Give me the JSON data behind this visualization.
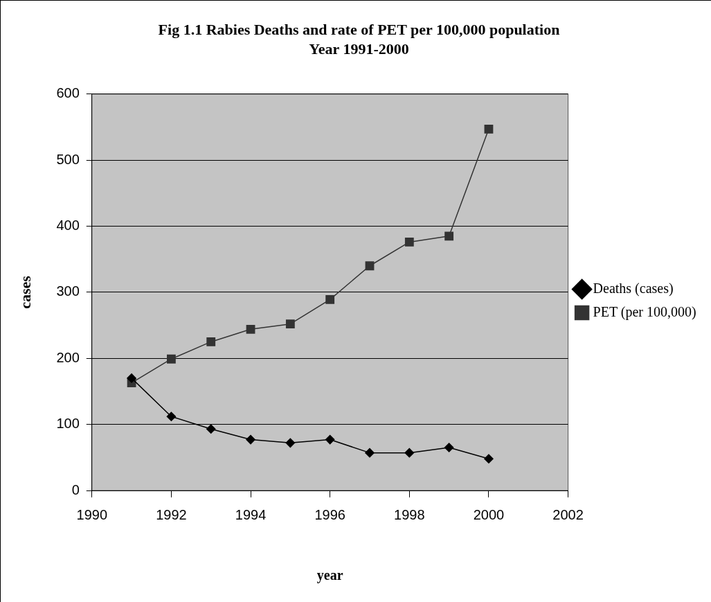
{
  "chart_data": {
    "type": "line",
    "title": "Fig 1.1 Rabies Deaths and rate of PET per 100,000 population",
    "subtitle": "Year 1991-2000",
    "xlabel": "year",
    "ylabel": "cases",
    "x": [
      1991,
      1992,
      1993,
      1994,
      1995,
      1996,
      1997,
      1998,
      1999,
      2000
    ],
    "series": [
      {
        "name": "Deaths (cases)",
        "color": "#000000",
        "marker": "diamond",
        "values": [
          170,
          112,
          93,
          77,
          72,
          77,
          57,
          57,
          65,
          48
        ]
      },
      {
        "name": "PET (per 100,000)",
        "color": "#333333",
        "marker": "square",
        "values": [
          163,
          199,
          225,
          244,
          252,
          289,
          340,
          376,
          385,
          547
        ]
      }
    ],
    "xlim": [
      1990,
      2002
    ],
    "xticks": [
      1990,
      1992,
      1994,
      1996,
      1998,
      2000,
      2002
    ],
    "ylim": [
      0,
      600
    ],
    "yticks": [
      0,
      100,
      200,
      300,
      400,
      500,
      600
    ],
    "grid": "y",
    "legend": "right",
    "line_style": "solid"
  }
}
